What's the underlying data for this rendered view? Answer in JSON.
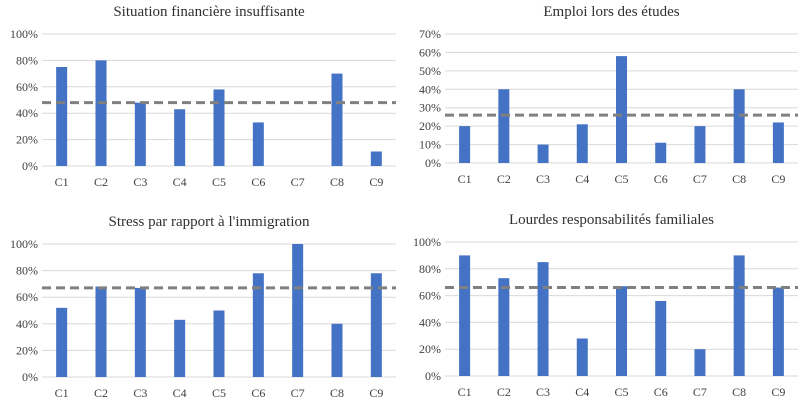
{
  "chart_data": [
    {
      "type": "bar",
      "title": "Situation financière insuffisante",
      "categories": [
        "C1",
        "C2",
        "C3",
        "C4",
        "C5",
        "C6",
        "C7",
        "C8",
        "C9"
      ],
      "values": [
        75,
        80,
        48,
        43,
        58,
        33,
        0,
        70,
        11
      ],
      "yticks": [
        "0%",
        "20%",
        "40%",
        "60%",
        "80%",
        "100%"
      ],
      "ylim": [
        0,
        100
      ],
      "reference_line": 48,
      "bar_color": "#4472C4",
      "reference_color": "#808080"
    },
    {
      "type": "bar",
      "title": "Emploi lors des études",
      "categories": [
        "C1",
        "C2",
        "C3",
        "C4",
        "C5",
        "C6",
        "C7",
        "C8",
        "C9"
      ],
      "values": [
        20,
        40,
        10,
        21,
        58,
        11,
        20,
        40,
        22
      ],
      "yticks": [
        "0%",
        "10%",
        "20%",
        "30%",
        "40%",
        "50%",
        "60%",
        "70%"
      ],
      "ylim": [
        0,
        70
      ],
      "reference_line": 26,
      "bar_color": "#4472C4",
      "reference_color": "#808080"
    },
    {
      "type": "bar",
      "title": "Stress par rapport à l'immigration",
      "categories": [
        "C1",
        "C2",
        "C3",
        "C4",
        "C5",
        "C6",
        "C7",
        "C8",
        "C9"
      ],
      "values": [
        52,
        68,
        67,
        43,
        50,
        78,
        100,
        40,
        78
      ],
      "yticks": [
        "0%",
        "20%",
        "40%",
        "60%",
        "80%",
        "100%"
      ],
      "ylim": [
        0,
        100
      ],
      "reference_line": 67,
      "bar_color": "#4472C4",
      "reference_color": "#808080"
    },
    {
      "type": "bar",
      "title": "Lourdes responsabilités familiales",
      "categories": [
        "C1",
        "C2",
        "C3",
        "C4",
        "C5",
        "C6",
        "C7",
        "C8",
        "C9"
      ],
      "values": [
        90,
        73,
        85,
        28,
        67,
        56,
        20,
        90,
        66
      ],
      "yticks": [
        "0%",
        "20%",
        "40%",
        "60%",
        "80%",
        "100%"
      ],
      "ylim": [
        0,
        100
      ],
      "reference_line": 66,
      "bar_color": "#4472C4",
      "reference_color": "#808080"
    }
  ]
}
